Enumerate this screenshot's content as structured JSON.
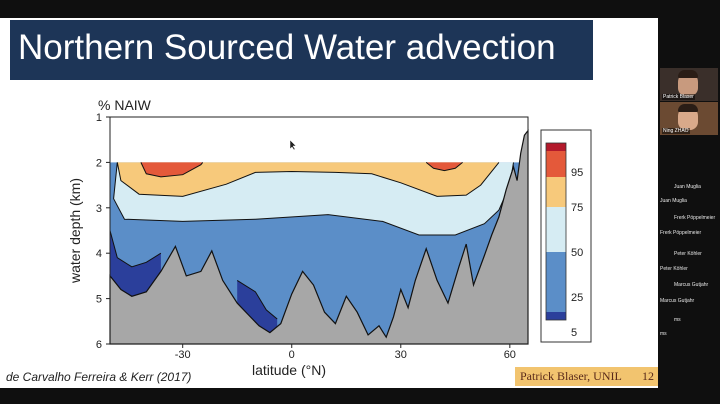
{
  "slide": {
    "title": "Northern Sourced Water advection",
    "citation": "de Carvalho Ferreira & Kerr (2017)",
    "footer_author": "Patrick Blaser, UNIL",
    "footer_page": "12"
  },
  "chart_data": {
    "type": "area",
    "title": "% NAIW",
    "xlabel": "latitude (°N)",
    "ylabel": "water depth (km)",
    "xlim": [
      -50,
      65
    ],
    "ylim": [
      6,
      1
    ],
    "xticks": [
      -30,
      0,
      30,
      60
    ],
    "yticks": [
      1,
      2,
      3,
      4,
      5,
      6
    ],
    "colorbar": {
      "labels": [
        "5",
        "25",
        "50",
        "75",
        "95"
      ],
      "colors": [
        "#2b3f9b",
        "#5b8ec8",
        "#d6ecf3",
        "#f7c97b",
        "#e4593a",
        "#b3192b"
      ],
      "bands": [
        [
          0,
          5
        ],
        [
          5,
          25
        ],
        [
          25,
          50
        ],
        [
          50,
          75
        ],
        [
          75,
          95
        ],
        [
          95,
          100
        ]
      ]
    },
    "contours": [
      {
        "level": 75,
        "points": [
          [
            -41.5,
            2.0
          ],
          [
            -40,
            2.25
          ],
          [
            -36,
            2.32
          ],
          [
            -30,
            2.27
          ],
          [
            -25,
            2.05
          ],
          [
            -24.5,
            2.0
          ]
        ]
      },
      {
        "level": 75,
        "points": [
          [
            37,
            2.0
          ],
          [
            39,
            2.13
          ],
          [
            42,
            2.18
          ],
          [
            45,
            2.13
          ],
          [
            47,
            2.0
          ]
        ]
      },
      {
        "level": 50,
        "points": [
          [
            -48,
            2.0
          ],
          [
            -47,
            2.4
          ],
          [
            -42,
            2.7
          ],
          [
            -30,
            2.75
          ],
          [
            -18,
            2.48
          ],
          [
            -10,
            2.22
          ],
          [
            0,
            2.2
          ],
          [
            12,
            2.22
          ],
          [
            22,
            2.25
          ],
          [
            30,
            2.45
          ],
          [
            40,
            2.75
          ],
          [
            48,
            2.72
          ],
          [
            52,
            2.5
          ],
          [
            56,
            2.1
          ],
          [
            57,
            2.0
          ]
        ]
      },
      {
        "level": 25,
        "points": [
          [
            -48,
            2.0
          ],
          [
            -49,
            2.8
          ],
          [
            -46,
            3.25
          ],
          [
            -30,
            3.3
          ],
          [
            -10,
            3.25
          ],
          [
            10,
            3.15
          ],
          [
            25,
            3.3
          ],
          [
            35,
            3.6
          ],
          [
            45,
            3.6
          ],
          [
            53,
            3.35
          ],
          [
            57,
            3.05
          ],
          [
            60,
            2.5
          ],
          [
            61,
            2.0
          ]
        ]
      },
      {
        "level": 5,
        "points": [
          [
            -50,
            3.5
          ],
          [
            -48,
            4.1
          ],
          [
            -44,
            4.3
          ],
          [
            -40,
            4.2
          ],
          [
            -36,
            4.0
          ]
        ]
      },
      {
        "level": 5,
        "points": [
          [
            -15,
            4.6
          ],
          [
            -10,
            4.85
          ],
          [
            -7,
            5.25
          ],
          [
            -4,
            5.45
          ]
        ]
      }
    ],
    "topography": [
      [
        -50,
        4.5
      ],
      [
        -47,
        4.8
      ],
      [
        -44,
        4.95
      ],
      [
        -40,
        4.85
      ],
      [
        -36,
        4.4
      ],
      [
        -32,
        3.85
      ],
      [
        -29,
        4.5
      ],
      [
        -25,
        4.4
      ],
      [
        -22,
        3.95
      ],
      [
        -19,
        4.6
      ],
      [
        -15,
        5.1
      ],
      [
        -12,
        5.35
      ],
      [
        -9,
        5.6
      ],
      [
        -6,
        5.75
      ],
      [
        -3,
        5.55
      ],
      [
        0,
        4.9
      ],
      [
        3,
        4.4
      ],
      [
        6,
        4.7
      ],
      [
        9,
        5.3
      ],
      [
        12,
        5.55
      ],
      [
        15,
        4.95
      ],
      [
        18,
        5.3
      ],
      [
        21,
        5.8
      ],
      [
        24,
        5.6
      ],
      [
        26,
        5.85
      ],
      [
        28,
        5.4
      ],
      [
        30,
        4.8
      ],
      [
        32,
        5.2
      ],
      [
        34,
        4.6
      ],
      [
        37,
        3.9
      ],
      [
        40,
        4.6
      ],
      [
        43,
        5.1
      ],
      [
        46,
        4.3
      ],
      [
        48,
        3.8
      ],
      [
        50,
        4.7
      ],
      [
        53,
        4.05
      ],
      [
        55,
        3.6
      ],
      [
        57,
        3.2
      ],
      [
        59,
        2.6
      ],
      [
        61,
        2.1
      ],
      [
        62,
        2.4
      ],
      [
        63,
        1.8
      ],
      [
        64,
        1.4
      ],
      [
        65,
        1.3
      ]
    ]
  },
  "participants": {
    "tiles": [
      {
        "name": "Patrick Blaser",
        "skin": "#c89a7e",
        "bg": "#3a2f2a"
      },
      {
        "name": "Ning ZHAO",
        "skin": "#d9a98a",
        "bg": "#6b4a32"
      }
    ],
    "list": [
      "Juan Muglia",
      "Juan Muglia",
      "Frerk Pöppelmeier",
      "Frerk Pöppelmeier",
      "Peter Köhler",
      "Peter Köhler",
      "Marcus Gutjahr",
      "Marcus Gutjahr",
      "ms",
      "ms"
    ]
  }
}
